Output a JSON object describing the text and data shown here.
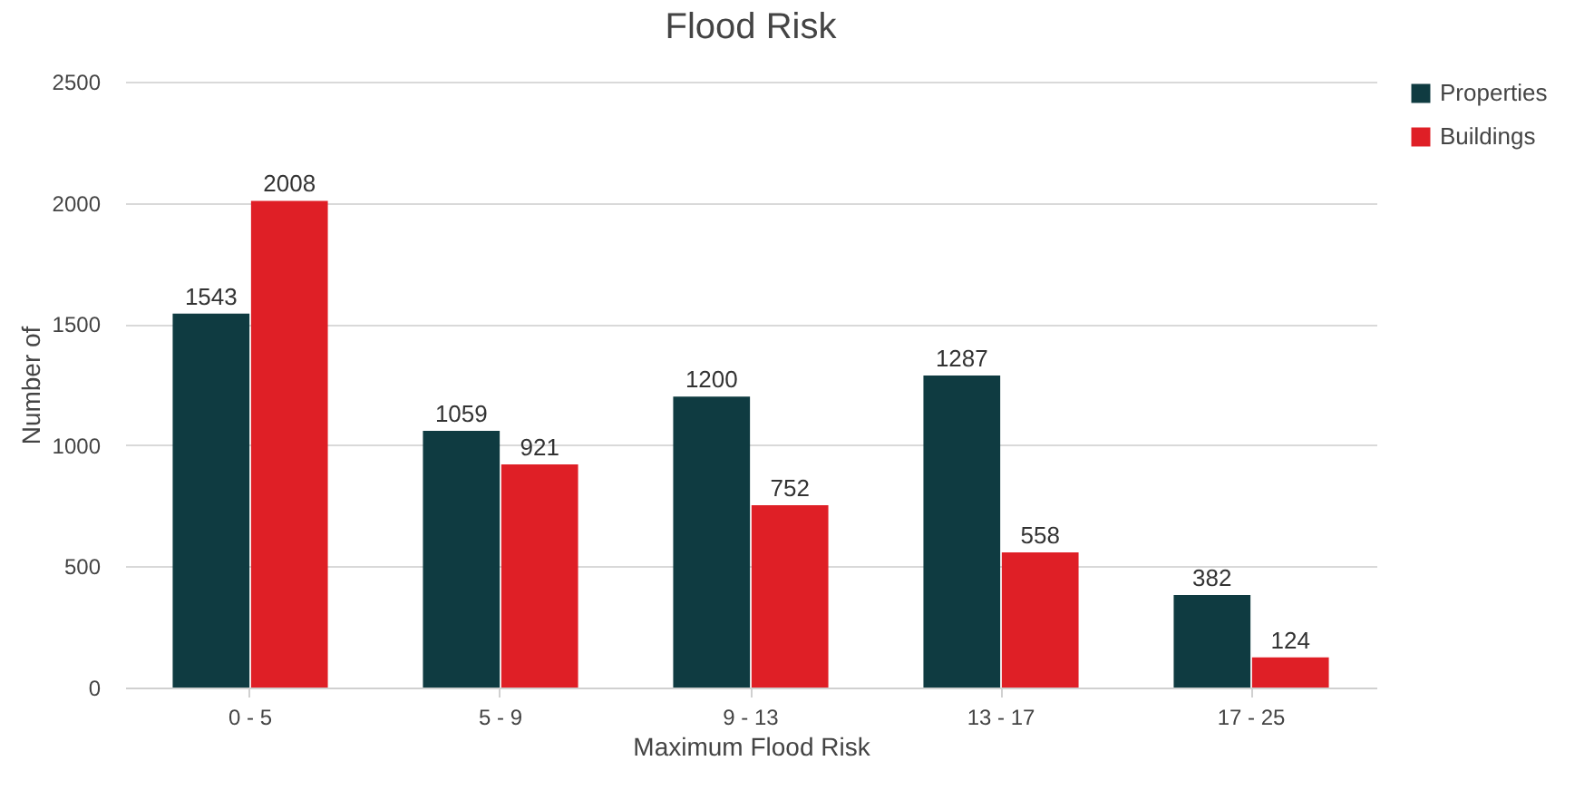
{
  "chart_data": {
    "type": "bar",
    "title": "Flood Risk",
    "xlabel": "Maximum Flood Risk",
    "ylabel": "Number of",
    "categories": [
      "0 - 5",
      "5 - 9",
      "9 - 13",
      "13 - 17",
      "17 - 25"
    ],
    "series": [
      {
        "name": "Properties",
        "color": "#0f3b41",
        "values": [
          1543,
          1059,
          1200,
          1287,
          382
        ]
      },
      {
        "name": "Buildings",
        "color": "#df1f26",
        "values": [
          2008,
          921,
          752,
          558,
          124
        ]
      }
    ],
    "ylim": [
      0,
      2500
    ],
    "yticks": [
      0,
      500,
      1000,
      1500,
      2000,
      2500
    ],
    "grid": "y",
    "legend": "right",
    "data_labels": true
  }
}
